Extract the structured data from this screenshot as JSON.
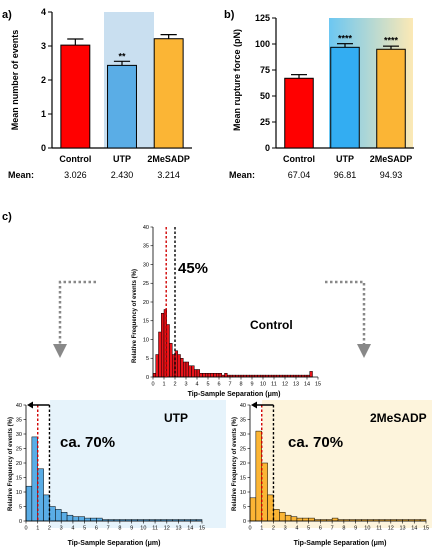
{
  "chart_data": [
    {
      "panel": "a)",
      "type": "bar",
      "ylabel": "Mean number of events",
      "ylim": [
        0,
        4
      ],
      "yticks": [
        "0",
        "1",
        "2",
        "3",
        "4"
      ],
      "categories": [
        "Control",
        "UTP",
        "2MeSADP"
      ],
      "values": [
        3.026,
        2.43,
        3.214
      ],
      "errors": [
        0.18,
        0.12,
        0.12
      ],
      "significance": [
        "",
        "**",
        ""
      ],
      "colors": [
        "#ff0000",
        "#5aade6",
        "#fbb535"
      ],
      "highlight_index": 1,
      "highlight_color": "#c9dff0",
      "mean_label": "Mean:",
      "means": [
        "3.026",
        "2.430",
        "3.214"
      ]
    },
    {
      "panel": "b)",
      "type": "bar",
      "ylabel": "Mean rupture force (pN)",
      "ylim": [
        0,
        125
      ],
      "yticks": [
        "0",
        "25",
        "50",
        "75",
        "100",
        "125"
      ],
      "categories": [
        "Control",
        "UTP",
        "2MeSADP"
      ],
      "values": [
        67.04,
        96.81,
        94.93
      ],
      "errors": [
        3.5,
        3.5,
        3.0
      ],
      "significance": [
        "",
        "****",
        "****"
      ],
      "colors": [
        "#ff0000",
        "#33adf2",
        "#fbb535"
      ],
      "highlight_gradient": [
        "#6cc7f2",
        "#fce9b5"
      ],
      "mean_label": "Mean:",
      "means": [
        "67.04",
        "96.81",
        "94.93"
      ]
    },
    {
      "panel": "c)",
      "type": "bar",
      "name": "Control",
      "percent_label": "45%",
      "xlabel": "Tip-Sample Separation (μm)",
      "ylabel": "Relative Frequency of events (%)",
      "ylim": [
        0,
        40
      ],
      "yticks": [
        "0",
        "5",
        "10",
        "15",
        "20",
        "25",
        "30",
        "35",
        "40"
      ],
      "xlim": [
        0,
        15
      ],
      "xticks": [
        "0",
        "1",
        "2",
        "3",
        "4",
        "5",
        "6",
        "7",
        "8",
        "9",
        "10",
        "11",
        "12",
        "13",
        "14",
        "15"
      ],
      "bin_width": 0.25,
      "values": [
        1,
        6,
        12,
        17,
        18,
        14,
        9,
        6,
        7,
        6,
        5,
        4,
        4,
        3,
        3,
        2,
        2,
        1,
        1,
        1,
        1,
        1,
        1,
        1,
        1,
        0.5,
        1,
        0.5,
        0.5,
        0.5,
        0.5,
        0.5,
        0.5,
        0.5,
        0.5,
        0.5,
        0.5,
        0.5,
        0.5,
        0.5,
        0.5,
        0.5,
        0.5,
        0.5,
        0.5,
        0.5,
        0.5,
        0.5,
        0.5,
        0.5,
        0.5,
        0.5,
        0.5,
        0.5,
        0.5,
        0.5,
        0.5,
        1.5
      ],
      "red_line": 1.2,
      "black_line": 2.0,
      "color": "#e8141b"
    },
    {
      "panel": "utp",
      "type": "bar",
      "name": "UTP",
      "percent_label": "ca. 70%",
      "xlabel": "Tip-Sample Separation (μm)",
      "ylabel": "Relative Frequency of events (%)",
      "ylim": [
        0,
        40
      ],
      "yticks": [
        "0",
        "5",
        "10",
        "15",
        "20",
        "25",
        "30",
        "35",
        "40"
      ],
      "xlim": [
        0,
        15
      ],
      "xticks": [
        "0",
        "1",
        "2",
        "3",
        "4",
        "5",
        "6",
        "7",
        "8",
        "9",
        "10",
        "11",
        "12",
        "13",
        "14",
        "15"
      ],
      "bin_width": 0.5,
      "values": [
        12,
        29,
        18,
        9,
        5,
        4,
        3,
        2,
        1.5,
        1.5,
        1,
        1,
        1,
        0.5,
        0.5,
        0.5,
        0.5,
        0.5,
        0.5,
        0.5,
        0.5,
        0.5,
        0.5,
        0.5,
        0.5,
        0.5,
        0.5,
        0.5,
        0.5,
        0.5
      ],
      "red_line": 1.0,
      "black_line": 2.0,
      "color": "#5aade6",
      "panel_bg": "#e6f3fb"
    },
    {
      "panel": "2mesadp",
      "type": "bar",
      "name": "2MeSADP",
      "percent_label": "ca. 70%",
      "xlabel": "Tip-Sample Separation (μm)",
      "ylabel": "Relative Frequency of events (%)",
      "ylim": [
        0,
        40
      ],
      "yticks": [
        "0",
        "5",
        "10",
        "15",
        "20",
        "25",
        "30",
        "35",
        "40"
      ],
      "xlim": [
        0,
        15
      ],
      "xticks": [
        "0",
        "1",
        "2",
        "3",
        "4",
        "5",
        "6",
        "7",
        "8",
        "9",
        "10",
        "11",
        "12",
        "13",
        "14",
        "15"
      ],
      "bin_width": 0.5,
      "values": [
        8,
        31,
        20,
        9,
        4,
        3,
        2,
        1.5,
        1,
        1,
        1,
        0.5,
        0.5,
        0.5,
        1,
        0.5,
        0.5,
        0.5,
        0.5,
        0.5,
        0.5,
        0.5,
        0.5,
        0.5,
        0.5,
        0.5,
        0.5,
        0.5,
        0.5,
        0.5
      ],
      "red_line": 1.0,
      "black_line": 2.0,
      "color": "#fbb535",
      "panel_bg": "#fdf4dc"
    }
  ]
}
